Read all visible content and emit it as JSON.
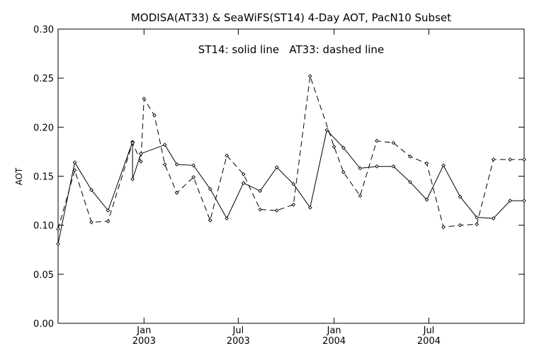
{
  "chart_data": {
    "type": "line",
    "title": "MODISA(AT33) & SeaWiFS(ST14) 4-Day AOT, PacN10 Subset",
    "annotation": "ST14: solid line   AT33: dashed line",
    "xlabel": "",
    "ylabel": "AOT",
    "ylim": [
      0.0,
      0.3
    ],
    "xlim": [
      "2002-07-20",
      "2004-12-31"
    ],
    "y_ticks": [
      "0.00",
      "0.05",
      "0.10",
      "0.15",
      "0.20",
      "0.25",
      "0.30"
    ],
    "x_ticks": [
      {
        "date": "2003-01-01",
        "month": "Jan",
        "year": "2003"
      },
      {
        "date": "2003-07-01",
        "month": "Jul",
        "year": "2003"
      },
      {
        "date": "2004-01-01",
        "month": "Jan",
        "year": "2004"
      },
      {
        "date": "2004-07-01",
        "month": "Jul",
        "year": "2004"
      }
    ],
    "grid": false,
    "legend": "none",
    "series": [
      {
        "name": "ST14",
        "style": "solid",
        "color": "#000000",
        "x": [
          "2002-07-20",
          "2002-08-21",
          "2002-09-22",
          "2002-10-24",
          "2002-12-10",
          "2002-12-10",
          "2002-12-26",
          "2003-02-10",
          "2003-03-05",
          "2003-04-06",
          "2003-05-08",
          "2003-06-09",
          "2003-07-11",
          "2003-08-12",
          "2003-09-13",
          "2003-10-15",
          "2003-11-16",
          "2003-12-18",
          "2004-01-19",
          "2004-02-20",
          "2004-03-23",
          "2004-04-24",
          "2004-05-26",
          "2004-06-27",
          "2004-07-29",
          "2004-08-30",
          "2004-10-01",
          "2004-11-02",
          "2004-12-04",
          "2004-12-31"
        ],
        "y": [
          0.081,
          0.164,
          0.136,
          0.115,
          0.185,
          0.147,
          0.173,
          0.182,
          0.162,
          0.161,
          0.137,
          0.107,
          0.143,
          0.135,
          0.159,
          0.142,
          0.118,
          0.197,
          0.179,
          0.158,
          0.16,
          0.16,
          0.144,
          0.126,
          0.161,
          0.129,
          0.108,
          0.107,
          0.125,
          0.125
        ]
      },
      {
        "name": "AT33",
        "style": "dashed",
        "color": "#000000",
        "x": [
          "2002-07-20",
          "2002-08-21",
          "2002-09-22",
          "2002-10-24",
          "2002-12-10",
          "2002-12-26",
          "2003-01-01",
          "2003-01-21",
          "2003-02-10",
          "2003-03-05",
          "2003-04-06",
          "2003-05-08",
          "2003-06-09",
          "2003-07-11",
          "2003-08-12",
          "2003-09-13",
          "2003-10-15",
          "2003-11-16",
          "2004-01-01",
          "2004-01-19",
          "2004-02-20",
          "2004-03-23",
          "2004-04-24",
          "2004-05-26",
          "2004-06-27",
          "2004-07-29",
          "2004-08-30",
          "2004-10-01",
          "2004-11-02",
          "2004-12-04",
          "2004-12-31"
        ],
        "y": [
          0.096,
          0.156,
          0.103,
          0.104,
          0.184,
          0.165,
          0.229,
          0.212,
          0.162,
          0.133,
          0.149,
          0.105,
          0.171,
          0.152,
          0.116,
          0.115,
          0.121,
          0.252,
          0.18,
          0.154,
          0.13,
          0.186,
          0.184,
          0.17,
          0.163,
          0.098,
          0.1,
          0.101,
          0.167,
          0.167,
          0.167
        ]
      }
    ]
  }
}
